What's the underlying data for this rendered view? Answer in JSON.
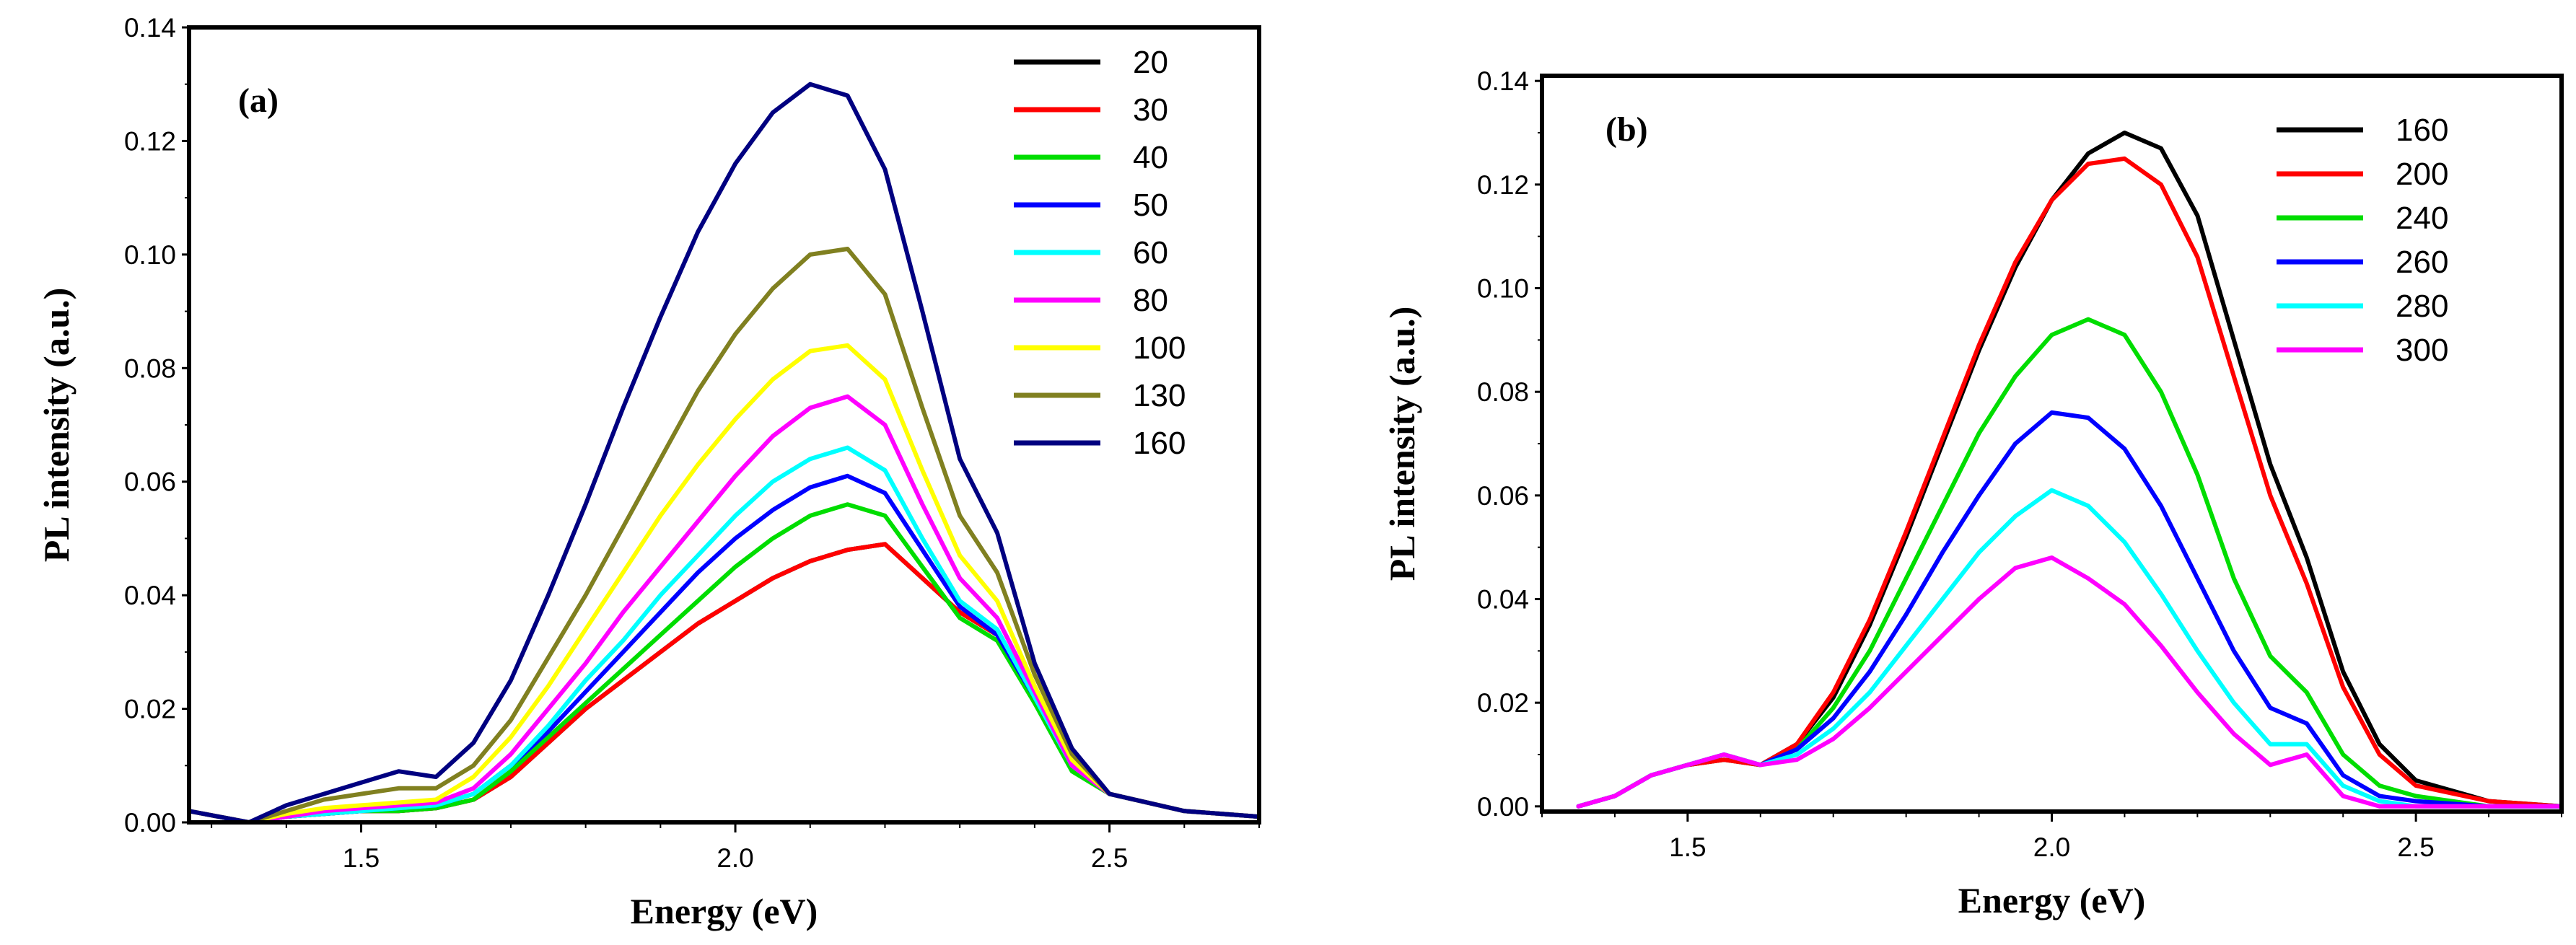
{
  "chart_data": [
    {
      "type": "line",
      "panel_label": "(a)",
      "xlabel": "Energy (eV)",
      "ylabel": "PL intensity (a.u.)",
      "xlim": [
        1.27,
        2.7
      ],
      "ylim": [
        0,
        0.14
      ],
      "xticks": [
        1.5,
        2.0,
        2.5
      ],
      "xtick_labels": [
        "1.5",
        "2.0",
        "2.5"
      ],
      "yticks": [
        0,
        0.02,
        0.04,
        0.06,
        0.08,
        0.1,
        0.12,
        0.14
      ],
      "ytick_labels": [
        "0.00",
        "0.02",
        "0.04",
        "0.06",
        "0.08",
        "0.10",
        "0.12",
        "0.14"
      ],
      "legend_position": "top-right",
      "x": [
        1.27,
        1.35,
        1.4,
        1.45,
        1.5,
        1.55,
        1.6,
        1.65,
        1.7,
        1.75,
        1.8,
        1.85,
        1.9,
        1.95,
        2.0,
        2.05,
        2.1,
        2.15,
        2.2,
        2.25,
        2.3,
        2.35,
        2.4,
        2.45,
        2.5,
        2.6,
        2.7
      ],
      "series": [
        {
          "name": "20",
          "color": "#000000",
          "values": [
            0.002,
            0.0,
            0.001,
            0.0015,
            0.002,
            0.002,
            0.0025,
            0.004,
            0.008,
            0.014,
            0.02,
            0.025,
            0.03,
            0.035,
            0.039,
            0.043,
            0.046,
            0.048,
            0.049,
            0.043,
            0.037,
            0.033,
            0.022,
            0.01,
            0.005,
            0.002,
            0.001
          ]
        },
        {
          "name": "30",
          "color": "#ff0000",
          "values": [
            0.002,
            0.0,
            0.001,
            0.0015,
            0.002,
            0.002,
            0.0025,
            0.004,
            0.008,
            0.014,
            0.02,
            0.025,
            0.03,
            0.035,
            0.039,
            0.043,
            0.046,
            0.048,
            0.049,
            0.043,
            0.037,
            0.033,
            0.022,
            0.01,
            0.005,
            0.002,
            0.001
          ]
        },
        {
          "name": "40",
          "color": "#00dd00",
          "values": [
            0.002,
            0.0,
            0.001,
            0.0015,
            0.002,
            0.002,
            0.0025,
            0.004,
            0.009,
            0.015,
            0.021,
            0.027,
            0.033,
            0.039,
            0.045,
            0.05,
            0.054,
            0.056,
            0.054,
            0.045,
            0.036,
            0.032,
            0.021,
            0.009,
            0.005,
            0.002,
            0.001
          ]
        },
        {
          "name": "50",
          "color": "#0000ff",
          "values": [
            0.002,
            0.0,
            0.001,
            0.0015,
            0.002,
            0.0025,
            0.003,
            0.005,
            0.01,
            0.016,
            0.023,
            0.03,
            0.037,
            0.044,
            0.05,
            0.055,
            0.059,
            0.061,
            0.058,
            0.048,
            0.038,
            0.033,
            0.022,
            0.01,
            0.005,
            0.002,
            0.001
          ]
        },
        {
          "name": "60",
          "color": "#00ffff",
          "values": [
            0.002,
            0.0,
            0.001,
            0.0015,
            0.002,
            0.0025,
            0.003,
            0.005,
            0.01,
            0.017,
            0.025,
            0.032,
            0.04,
            0.047,
            0.054,
            0.06,
            0.064,
            0.066,
            0.062,
            0.05,
            0.039,
            0.034,
            0.022,
            0.01,
            0.005,
            0.002,
            0.001
          ]
        },
        {
          "name": "80",
          "color": "#ff00ff",
          "values": [
            0.002,
            0.0,
            0.001,
            0.002,
            0.0025,
            0.003,
            0.0035,
            0.006,
            0.012,
            0.02,
            0.028,
            0.037,
            0.045,
            0.053,
            0.061,
            0.068,
            0.073,
            0.075,
            0.07,
            0.056,
            0.043,
            0.036,
            0.023,
            0.01,
            0.005,
            0.002,
            0.001
          ]
        },
        {
          "name": "100",
          "color": "#ffff00",
          "values": [
            0.002,
            0.0,
            0.0015,
            0.0025,
            0.003,
            0.0035,
            0.004,
            0.008,
            0.015,
            0.024,
            0.034,
            0.044,
            0.054,
            0.063,
            0.071,
            0.078,
            0.083,
            0.084,
            0.078,
            0.062,
            0.047,
            0.039,
            0.024,
            0.011,
            0.005,
            0.002,
            0.001
          ]
        },
        {
          "name": "130",
          "color": "#808020",
          "values": [
            0.002,
            0.0,
            0.002,
            0.004,
            0.005,
            0.006,
            0.006,
            0.01,
            0.018,
            0.029,
            0.04,
            0.052,
            0.064,
            0.076,
            0.086,
            0.094,
            0.1,
            0.101,
            0.093,
            0.073,
            0.054,
            0.044,
            0.026,
            0.012,
            0.005,
            0.002,
            0.001
          ]
        },
        {
          "name": "160",
          "color": "#000080",
          "values": [
            0.002,
            0.0,
            0.003,
            0.005,
            0.007,
            0.009,
            0.008,
            0.014,
            0.025,
            0.04,
            0.056,
            0.073,
            0.089,
            0.104,
            0.116,
            0.125,
            0.13,
            0.128,
            0.115,
            0.09,
            0.064,
            0.051,
            0.028,
            0.013,
            0.005,
            0.002,
            0.001
          ]
        }
      ]
    },
    {
      "type": "line",
      "panel_label": "(b)",
      "xlabel": "Energy (eV)",
      "ylabel": "PL intensity (a.u.)",
      "xlim": [
        1.3,
        2.7
      ],
      "ylim": [
        -0.001,
        0.141
      ],
      "xticks": [
        1.5,
        2.0,
        2.5
      ],
      "xtick_labels": [
        "1.5",
        "2.0",
        "2.5"
      ],
      "yticks": [
        0,
        0.02,
        0.04,
        0.06,
        0.08,
        0.1,
        0.12,
        0.14
      ],
      "ytick_labels": [
        "0.00",
        "0.02",
        "0.04",
        "0.06",
        "0.08",
        "0.10",
        "0.12",
        "0.14"
      ],
      "legend_position": "top-left",
      "x": [
        1.35,
        1.4,
        1.45,
        1.5,
        1.55,
        1.6,
        1.65,
        1.7,
        1.75,
        1.8,
        1.85,
        1.9,
        1.95,
        2.0,
        2.05,
        2.1,
        2.15,
        2.2,
        2.25,
        2.3,
        2.35,
        2.4,
        2.45,
        2.5,
        2.6,
        2.7
      ],
      "series": [
        {
          "name": "160",
          "color": "#000000",
          "values": [
            0.0,
            0.002,
            0.006,
            0.008,
            0.009,
            0.008,
            0.012,
            0.021,
            0.035,
            0.052,
            0.07,
            0.088,
            0.104,
            0.117,
            0.126,
            0.13,
            0.127,
            0.114,
            0.09,
            0.066,
            0.048,
            0.026,
            0.012,
            0.005,
            0.001,
            0.0
          ]
        },
        {
          "name": "200",
          "color": "#ff0000",
          "values": [
            0.0,
            0.002,
            0.006,
            0.008,
            0.009,
            0.008,
            0.012,
            0.022,
            0.036,
            0.053,
            0.071,
            0.089,
            0.105,
            0.117,
            0.124,
            0.125,
            0.12,
            0.106,
            0.083,
            0.06,
            0.043,
            0.023,
            0.01,
            0.004,
            0.001,
            0.0
          ]
        },
        {
          "name": "240",
          "color": "#00dd00",
          "values": [
            0.0,
            0.002,
            0.006,
            0.008,
            0.01,
            0.008,
            0.011,
            0.019,
            0.03,
            0.044,
            0.058,
            0.072,
            0.083,
            0.091,
            0.094,
            0.091,
            0.08,
            0.064,
            0.044,
            0.029,
            0.022,
            0.01,
            0.004,
            0.002,
            0.0,
            0.0
          ]
        },
        {
          "name": "260",
          "color": "#0000ff",
          "values": [
            0.0,
            0.002,
            0.006,
            0.008,
            0.01,
            0.008,
            0.011,
            0.017,
            0.026,
            0.037,
            0.049,
            0.06,
            0.07,
            0.076,
            0.075,
            0.069,
            0.058,
            0.044,
            0.03,
            0.019,
            0.016,
            0.006,
            0.002,
            0.001,
            0.0,
            0.0
          ]
        },
        {
          "name": "280",
          "color": "#00ffff",
          "values": [
            0.0,
            0.002,
            0.006,
            0.008,
            0.01,
            0.008,
            0.01,
            0.015,
            0.022,
            0.031,
            0.04,
            0.049,
            0.056,
            0.061,
            0.058,
            0.051,
            0.041,
            0.03,
            0.02,
            0.012,
            0.012,
            0.004,
            0.001,
            0.0,
            0.0,
            0.0
          ]
        },
        {
          "name": "300",
          "color": "#ff00ff",
          "values": [
            0.0,
            0.002,
            0.006,
            0.008,
            0.01,
            0.008,
            0.009,
            0.013,
            0.019,
            0.026,
            0.033,
            0.04,
            0.046,
            0.048,
            0.044,
            0.039,
            0.031,
            0.022,
            0.014,
            0.008,
            0.01,
            0.002,
            0.0,
            0.0,
            0.0,
            0.0
          ]
        }
      ]
    }
  ]
}
